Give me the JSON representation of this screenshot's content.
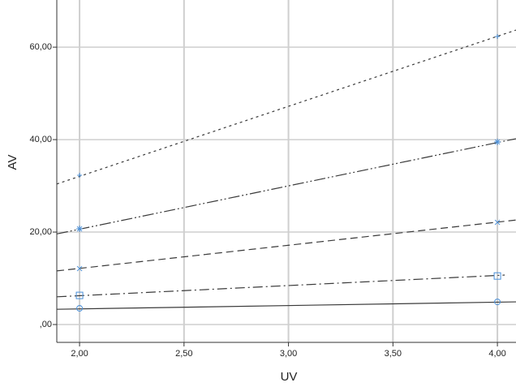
{
  "chart_data": {
    "type": "scatter",
    "x_label": "UV",
    "y_label": "AV",
    "xlim": [
      1.891,
      4.089
    ],
    "ylim": [
      -3.86,
      70.2
    ],
    "xticks": [
      {
        "value": 2,
        "label": "2,00"
      },
      {
        "value": 2.5,
        "label": "2,50"
      },
      {
        "value": 3,
        "label": "3,00"
      },
      {
        "value": 3.5,
        "label": "3,50"
      },
      {
        "value": 4,
        "label": "4,00"
      }
    ],
    "yticks": [
      {
        "value": 0,
        "label": ",00"
      },
      {
        "value": 20,
        "label": "20,00"
      },
      {
        "value": 40,
        "label": "40,00"
      },
      {
        "value": 60,
        "label": "60,00"
      }
    ],
    "grid": true,
    "marker_color": "#4a90d9",
    "line_color": "#3a3a3a",
    "series": [
      {
        "marker": "circle",
        "dash": "none",
        "x": [
          2,
          4
        ],
        "values": [
          3.5,
          4.9
        ],
        "fit_x": [
          1.891,
          4.089
        ],
        "fit_values": [
          3.3,
          4.9
        ]
      },
      {
        "marker": "square",
        "dash": "12 4 2 4",
        "x": [
          2,
          4
        ],
        "values": [
          6.3,
          10.5
        ],
        "fit_x": [
          1.891,
          4.035
        ],
        "fit_values": [
          6.0,
          10.7
        ]
      },
      {
        "marker": "x",
        "dash": "9 5",
        "x": [
          2,
          4
        ],
        "values": [
          12.1,
          22.1
        ],
        "fit_x": [
          1.891,
          4.089
        ],
        "fit_values": [
          11.6,
          22.6
        ]
      },
      {
        "marker": "star",
        "dash": "14 3 2 3 2 3",
        "x": [
          2,
          4
        ],
        "values": [
          20.7,
          39.5
        ],
        "fit_x": [
          1.891,
          4.089
        ],
        "fit_values": [
          19.6,
          40.2
        ]
      },
      {
        "marker": "plus",
        "dash": "3 4",
        "x": [
          2,
          4
        ],
        "values": [
          32.3,
          62.3
        ],
        "fit_x": [
          1.891,
          4.089
        ],
        "fit_values": [
          30.4,
          63.7
        ]
      }
    ]
  }
}
